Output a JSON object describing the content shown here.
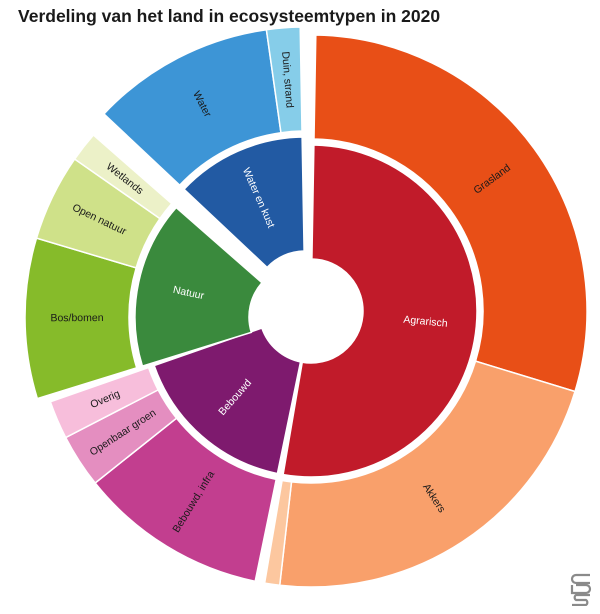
{
  "chart_data": {
    "type": "sunburst",
    "title": "Verdeling van het land in ecosysteemtypen in 2020",
    "inner": [
      {
        "name": "Agrarisch",
        "value": 53.6,
        "color": "#c11b2a",
        "label_color": "#ffffff"
      },
      {
        "name": "Bebouwd",
        "value": 16.8,
        "color": "#7e1a6e",
        "label_color": "#ffffff"
      },
      {
        "name": "Natuur",
        "value": 16.6,
        "color": "#3a8a3d",
        "label_color": "#ffffff"
      },
      {
        "name": "Water en kust",
        "value": 13.0,
        "color": "#225aa3",
        "label_color": "#ffffff"
      }
    ],
    "outer": [
      {
        "name": "Grasland",
        "parent": "Agrarisch",
        "value": 30.1,
        "color": "#e84f17",
        "label_color": "#1a1a1a"
      },
      {
        "name": "Akkers",
        "parent": "Agrarisch",
        "value": 22.6,
        "color": "#f9a06b",
        "label_color": "#1a1a1a"
      },
      {
        "name": "",
        "parent": "Agrarisch",
        "value": 0.9,
        "color": "#fcc79f",
        "label_color": "#1a1a1a"
      },
      {
        "name": "Bebouwd, infra",
        "parent": "Bebouwd",
        "value": 11.3,
        "color": "#c23e8f",
        "label_color": "#1a1a1a"
      },
      {
        "name": "Openbaar groen",
        "parent": "Bebouwd",
        "value": 3.2,
        "color": "#e48ec0",
        "label_color": "#1a1a1a"
      },
      {
        "name": "Overig",
        "parent": "Bebouwd",
        "value": 2.3,
        "color": "#f7bedb",
        "label_color": "#1a1a1a"
      },
      {
        "name": "Bos/bomen",
        "parent": "Natuur",
        "value": 9.6,
        "color": "#86bb2a",
        "label_color": "#1a1a1a"
      },
      {
        "name": "Open natuur",
        "parent": "Natuur",
        "value": 5.2,
        "color": "#cfe189",
        "label_color": "#1a1a1a"
      },
      {
        "name": "Wetlands",
        "parent": "Natuur",
        "value": 1.8,
        "color": "#ecf1c8",
        "label_color": "#1a1a1a"
      },
      {
        "name": "Water",
        "parent": "Water en kust",
        "value": 11.0,
        "color": "#3d95d6",
        "label_color": "#1a1a1a"
      },
      {
        "name": "Duin, strand",
        "parent": "Water en kust",
        "value": 2.0,
        "color": "#86cde9",
        "label_color": "#1a1a1a"
      }
    ]
  },
  "logo": {
    "name": "cbs-logo-icon",
    "color": "#8a8a8a"
  }
}
